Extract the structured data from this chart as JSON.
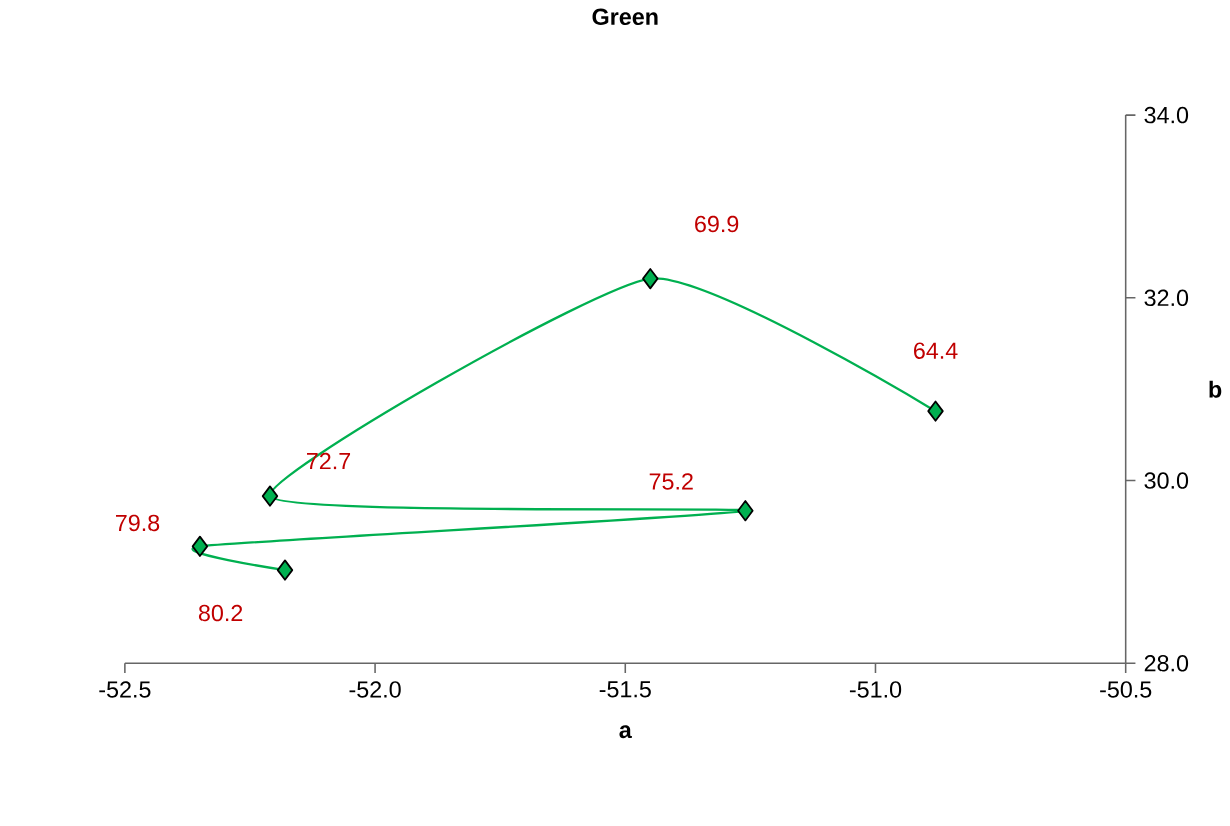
{
  "chart_data": {
    "type": "line",
    "title": "Green",
    "xlabel": "a",
    "ylabel": "b",
    "xlim": [
      -52.5,
      -50.5
    ],
    "xticks": [
      -52.5,
      {
        "value": -52.0,
        "label": "-52.0"
      },
      -51.5,
      {
        "value": -51.0,
        "label": "-51.0"
      },
      -50.5
    ],
    "ylim": [
      28,
      34
    ],
    "yticks": [
      {
        "value": 28,
        "label": "28.0"
      },
      {
        "value": 30,
        "label": "30.0"
      },
      {
        "value": 32,
        "label": "32.0"
      },
      {
        "value": 34,
        "label": "34.0"
      }
    ],
    "marker": "diamond",
    "series": [
      {
        "color": "#00b050",
        "x": [
          -50.88,
          -51.45,
          -52.21,
          -51.26,
          -52.35,
          -52.18
        ],
        "values": [
          30.76,
          32.21,
          29.83,
          29.67,
          29.28,
          29.02
        ]
      }
    ],
    "annotations": [
      {
        "text": "64.4",
        "x": -50.88,
        "y": 30.76
      },
      {
        "text": "69.9",
        "x": -51.45,
        "y": 32.21
      },
      {
        "text": "72.7",
        "x": -52.21,
        "y": 29.83
      },
      {
        "text": "75.2",
        "x": -51.26,
        "y": 29.67
      },
      {
        "text": "79.8",
        "x": -52.35,
        "y": 29.28
      },
      {
        "text": "80.2",
        "x": -52.18,
        "y": 29.02
      }
    ]
  }
}
